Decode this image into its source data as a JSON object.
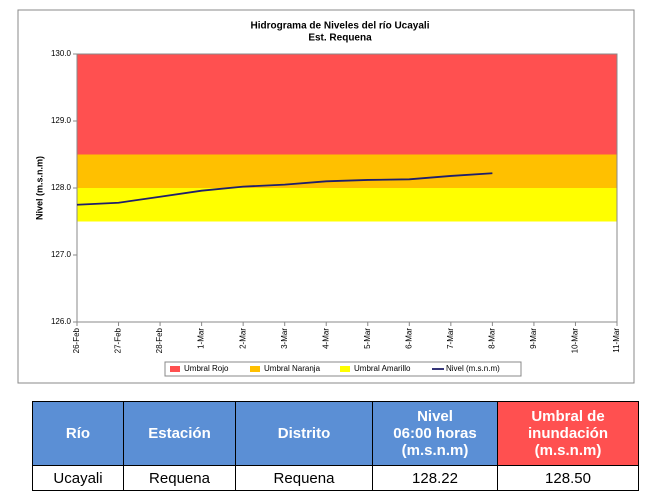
{
  "chart_data": {
    "type": "line",
    "title": "Hidrograma de Niveles del río Ucayali",
    "subtitle": "Est. Requena",
    "y_label": "Nivel (m.s.n.m)",
    "categories": [
      "26-Feb",
      "27-Feb",
      "28-Feb",
      "1-Mar",
      "2-Mar",
      "3-Mar",
      "4-Mar",
      "5-Mar",
      "6-Mar",
      "7-Mar",
      "8-Mar",
      "9-Mar",
      "10-Mar",
      "11-Mar"
    ],
    "ylim": [
      126,
      130
    ],
    "yticks": [
      {
        "value": 126,
        "label": "126.0"
      },
      {
        "value": 127,
        "label": "127.0"
      },
      {
        "value": 128,
        "label": "128.0"
      },
      {
        "value": 129,
        "label": "129.0"
      },
      {
        "value": 130,
        "label": "130.0"
      }
    ],
    "bands": [
      {
        "name": "Umbral Rojo",
        "color": "#ff5050",
        "from": 128.5,
        "to": 130
      },
      {
        "name": "Umbral Naranja",
        "color": "#ffc000",
        "from": 128,
        "to": 128.5
      },
      {
        "name": "Umbral Amarillo",
        "color": "#ffff00",
        "from": 127.5,
        "to": 128
      }
    ],
    "series": [
      {
        "name": "Nivel (m.s.n.m)",
        "color": "#1f1f6b",
        "values": [
          127.75,
          127.78,
          127.87,
          127.96,
          128.02,
          128.05,
          128.1,
          128.12,
          128.13,
          128.18,
          128.22,
          null,
          null,
          null
        ]
      }
    ]
  },
  "table": {
    "header": [
      "Río",
      "Estación",
      "Distrito",
      "Nivel\n06:00 horas\n(m.s.n.m)",
      "Umbral de\ninundación\n(m.s.n.m)"
    ],
    "rows": [
      [
        "Ucayali",
        "Requena",
        "Requena",
        "128.22",
        "128.50"
      ]
    ]
  }
}
